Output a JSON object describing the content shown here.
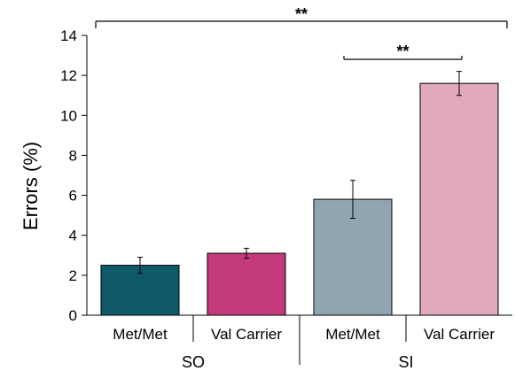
{
  "chart_data": {
    "type": "bar",
    "ylabel": "Errors (%)",
    "ylim": [
      0,
      14
    ],
    "yticks": [
      0,
      2,
      4,
      6,
      8,
      10,
      12,
      14
    ],
    "grid": false,
    "categories": [
      "Met/Met",
      "Val Carrier",
      "Met/Met",
      "Val Carrier"
    ],
    "groups": [
      {
        "label": "SO",
        "categories": [
          0,
          1
        ]
      },
      {
        "label": "SI",
        "categories": [
          2,
          3
        ]
      }
    ],
    "values": [
      2.5,
      3.1,
      5.8,
      11.6
    ],
    "errors": [
      0.4,
      0.25,
      0.95,
      0.6
    ],
    "colors": [
      "#0e5a68",
      "#c23a7b",
      "#8fa6b0",
      "#e0aabb"
    ],
    "significance": [
      {
        "from": 0,
        "to": 3,
        "label": "**",
        "level": "top"
      },
      {
        "from": 2,
        "to": 3,
        "label": "**",
        "level": "inner"
      }
    ]
  }
}
